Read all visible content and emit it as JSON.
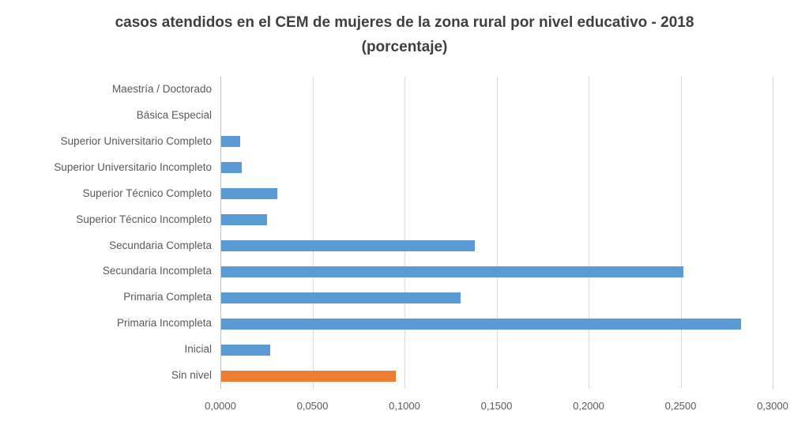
{
  "title": {
    "line1": "casos atendidos en el CEM de mujeres de la zona rural por nivel educativo - 2018",
    "line2": "(porcentaje)"
  },
  "colors": {
    "bar_default": "#5B9BD5",
    "bar_highlight": "#ED7D31",
    "gridline": "#D9D9D9",
    "axis_line": "#BFBFBF",
    "title_text": "#3F3F3F",
    "label_text": "#595959"
  },
  "chart_data": {
    "type": "bar",
    "orientation": "horizontal",
    "title": "casos atendidos en el CEM de mujeres de la zona rural por nivel educativo - 2018 (porcentaje)",
    "categories": [
      "Maestría / Doctorado",
      "Básica Especial",
      "Superior Universitario Completo",
      "Superior Universitario Incompleto",
      "Superior Técnico Completo",
      "Superior Técnico Incompleto",
      "Secundaria Completa",
      "Secundaria Incompleta",
      "Primaria Completa",
      "Primaria Incompleta",
      "Inicial",
      "Sin nivel"
    ],
    "values": [
      0.0,
      0.0,
      0.0103,
      0.0113,
      0.0306,
      0.0251,
      0.1379,
      0.251,
      0.13,
      0.2822,
      0.0267,
      0.0947
    ],
    "bar_colors": [
      "#5B9BD5",
      "#5B9BD5",
      "#5B9BD5",
      "#5B9BD5",
      "#5B9BD5",
      "#5B9BD5",
      "#5B9BD5",
      "#5B9BD5",
      "#5B9BD5",
      "#5B9BD5",
      "#5B9BD5",
      "#ED7D31"
    ],
    "xlabel": "",
    "ylabel": "",
    "xlim": [
      0,
      0.3
    ],
    "x_tick_values": [
      0.0,
      0.05,
      0.1,
      0.15,
      0.2,
      0.25,
      0.3
    ],
    "x_tick_labels": [
      "0,0000",
      "0,0500",
      "0,1000",
      "0,1500",
      "0,2000",
      "0,2500",
      "0,3000"
    ],
    "grid": true,
    "legend": false
  }
}
